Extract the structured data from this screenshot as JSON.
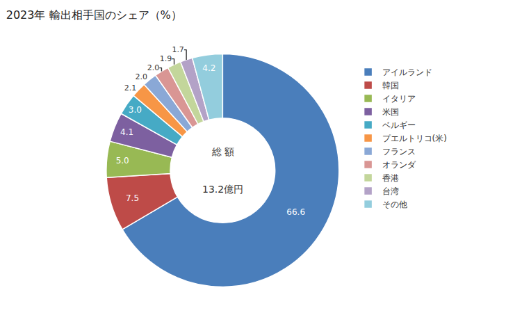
{
  "chart_data": {
    "type": "pie",
    "title": "2023年 輸出相手国のシェア（%）",
    "annotations": [
      "総 額",
      "13.2億円"
    ],
    "categories": [
      "アイルランド",
      "韓国",
      "イタリア",
      "米国",
      "ベルギー",
      "プエルトリコ(米)",
      "フランス",
      "オランダ",
      "香港",
      "台湾",
      "その他"
    ],
    "values": [
      66.6,
      7.5,
      5.0,
      4.1,
      3.0,
      2.1,
      2.0,
      2.0,
      1.9,
      1.7,
      4.2
    ],
    "value_labels": [
      "66.6",
      "7.5",
      "5.0",
      "4.1",
      "3.0",
      "2.1",
      "2.0",
      "2.0",
      "1.9",
      "1.7",
      "4.2"
    ],
    "colors": [
      "#4a7ebb",
      "#be4b48",
      "#98b954",
      "#7d60a0",
      "#46aac5",
      "#f79646",
      "#8aa8d6",
      "#d99694",
      "#c3d69b",
      "#b3a2c7",
      "#93cddd"
    ],
    "data_labels": true,
    "legend": "right"
  }
}
